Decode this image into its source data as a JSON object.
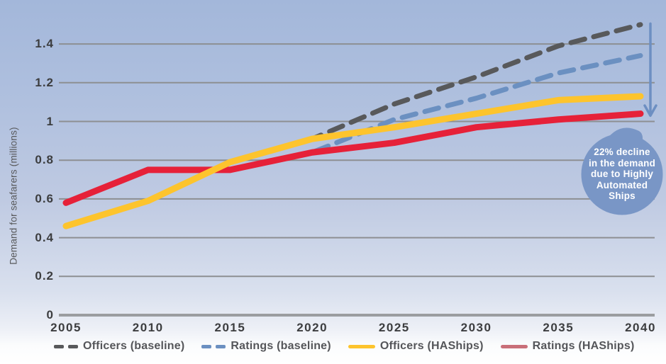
{
  "chart_data": {
    "type": "line",
    "title": "",
    "xlabel": "",
    "ylabel": "Demand for seafarers (millions)",
    "x": [
      2005,
      2010,
      2015,
      2020,
      2025,
      2030,
      2035,
      2040
    ],
    "x_tick_labels": [
      "2005",
      "2010",
      "2015",
      "2020",
      "2025",
      "2030",
      "2035",
      "2040"
    ],
    "y_ticks": [
      0,
      0.2,
      0.4,
      0.6,
      0.8,
      1,
      1.2,
      1.4
    ],
    "y_tick_labels": [
      "0",
      "0.2",
      "0.4",
      "0.6",
      "0.8",
      "1",
      "1.2",
      "1.4"
    ],
    "ylim": [
      0,
      1.52
    ],
    "xlim": [
      2005,
      2040
    ],
    "grid": "horizontal",
    "legend_position": "bottom",
    "series": [
      {
        "name": "Officers (baseline)",
        "style": "dashed",
        "color": "#58595b",
        "legend_color": "#58595b",
        "values": [
          0.46,
          0.59,
          0.79,
          0.91,
          1.09,
          1.23,
          1.39,
          1.5
        ]
      },
      {
        "name": "Ratings (baseline)",
        "style": "dashed",
        "color": "#6b90c1",
        "legend_color": "#6b90c1",
        "values": [
          0.58,
          0.75,
          0.75,
          0.84,
          1.01,
          1.12,
          1.25,
          1.34
        ]
      },
      {
        "name": "Ratings (HAShips)",
        "style": "solid",
        "color": "#e62139",
        "legend_color": "#c96f79",
        "values": [
          0.58,
          0.75,
          0.75,
          0.84,
          0.89,
          0.97,
          1.01,
          1.04
        ]
      },
      {
        "name": "Officers (HAShips)",
        "style": "solid",
        "color": "#fdc42d",
        "legend_color": "#fdc42d",
        "values": [
          0.46,
          0.59,
          0.79,
          0.91,
          0.97,
          1.04,
          1.11,
          1.13
        ]
      }
    ],
    "legend_order": [
      "Officers (baseline)",
      "Ratings (baseline)",
      "Officers (HAShips)",
      "Ratings (HAShips)"
    ],
    "annotation": {
      "text": "22% decline in the demand due to Highly Automated Ships",
      "lines": [
        "22% decline",
        "in the demand",
        "due to Highly",
        "Automated",
        "Ships"
      ],
      "bubble_color": "#7996c6",
      "arrow_color": "#6d8fc2"
    }
  },
  "colors": {
    "gridline": "#8d8f92",
    "axis_line": "#9b9da0",
    "tick_text": "#3c3d3f",
    "axis_title_text": "#58595b",
    "legend_text": "#55565a"
  }
}
